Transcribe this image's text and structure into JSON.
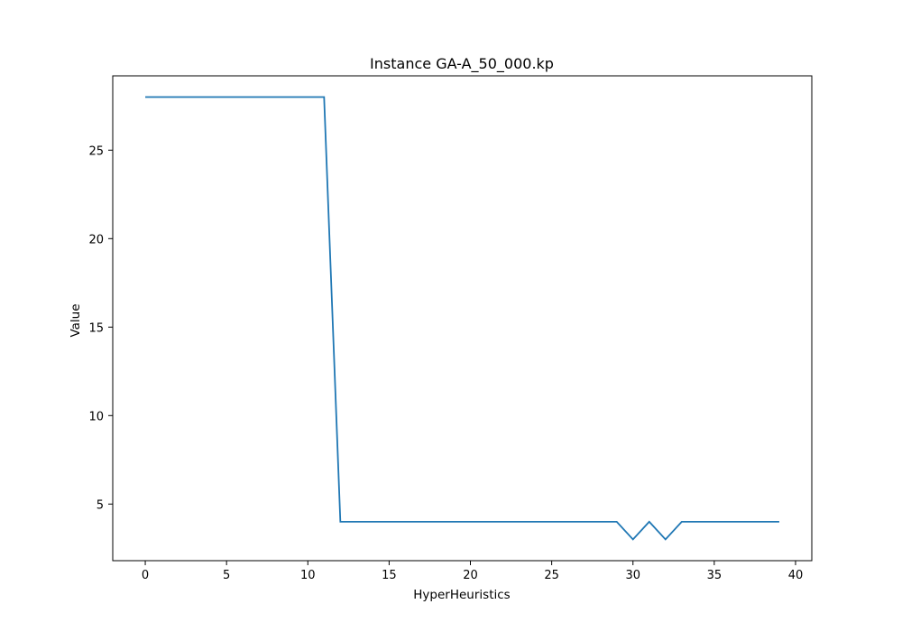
{
  "chart_data": {
    "type": "line",
    "title": "Instance GA-A_50_000.kp",
    "xlabel": "HyperHeuristics",
    "ylabel": "Value",
    "xlim": [
      -2,
      41
    ],
    "ylim": [
      1.8,
      29.2
    ],
    "xticks": [
      0,
      5,
      10,
      15,
      20,
      25,
      30,
      35,
      40
    ],
    "yticks": [
      5,
      10,
      15,
      20,
      25
    ],
    "grid": false,
    "legend": "none",
    "series": [
      {
        "color": "#1f77b4",
        "x": [
          0,
          1,
          2,
          3,
          4,
          5,
          6,
          7,
          8,
          9,
          10,
          11,
          12,
          13,
          14,
          15,
          16,
          17,
          18,
          19,
          20,
          21,
          22,
          23,
          24,
          25,
          26,
          27,
          28,
          29,
          30,
          31,
          32,
          33,
          34,
          35,
          36,
          37,
          38,
          39
        ],
        "values": [
          28,
          28,
          28,
          28,
          28,
          28,
          28,
          28,
          28,
          28,
          28,
          28,
          4,
          4,
          4,
          4,
          4,
          4,
          4,
          4,
          4,
          4,
          4,
          4,
          4,
          4,
          4,
          4,
          4,
          4,
          3,
          4,
          3,
          4,
          4,
          4,
          4,
          4,
          4,
          4
        ]
      }
    ]
  }
}
